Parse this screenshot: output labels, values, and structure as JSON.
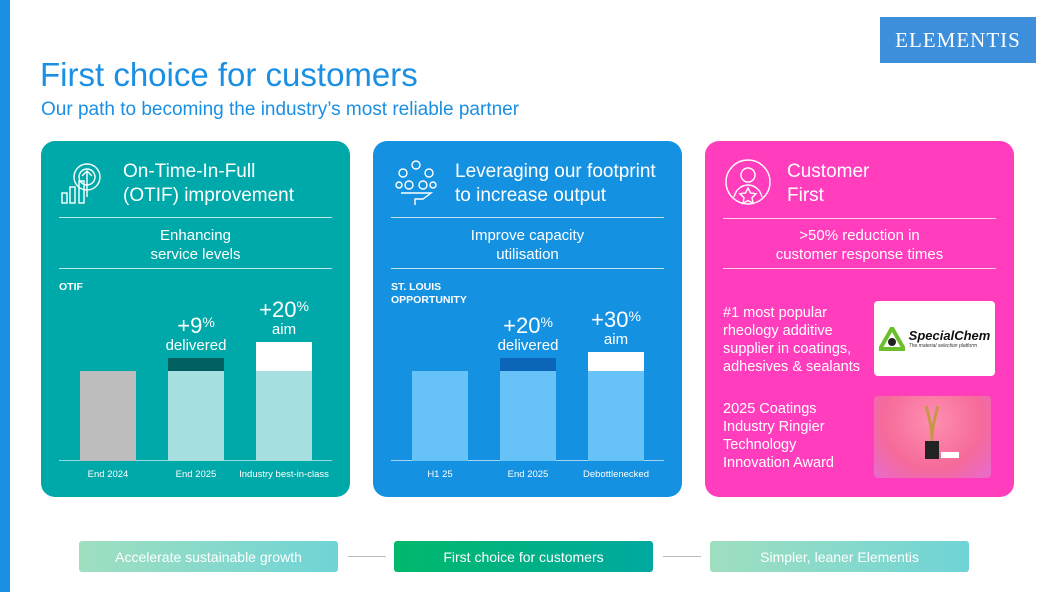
{
  "logo": "ELEMENTIS",
  "title": "First choice for customers",
  "subtitle": "Our path to becoming the industry’s most reliable partner",
  "cards": [
    {
      "title_l1": "On-Time-In-Full",
      "title_l2": "(OTIF) improvement",
      "tag_l1": "Enhancing",
      "tag_l2": "service levels",
      "color": "#00a9a9",
      "chart_label": "OTIF",
      "bars": [
        {
          "label": "End 2024",
          "base": 100,
          "increment": 0
        },
        {
          "label": "End 2025",
          "base": 100,
          "increment": 9,
          "ann_value": "+9",
          "ann_text": "delivered"
        },
        {
          "label": "Industry best-in-class",
          "base": 100,
          "increment": 20,
          "ann_value": "+20",
          "ann_text": "aim"
        }
      ]
    },
    {
      "title_l1": "Leveraging our footprint",
      "title_l2": "to increase output",
      "tag_l1": "Improve capacity",
      "tag_l2": "utilisation",
      "color": "#1591e2",
      "chart_label_l1": "ST. LOUIS",
      "chart_label_l2": "OPPORTUNITY",
      "bars": [
        {
          "label": "H1 25",
          "base": 100,
          "increment": 0
        },
        {
          "label": "End 2025",
          "base": 100,
          "increment": 20,
          "ann_value": "+20",
          "ann_text": "delivered"
        },
        {
          "label": "Debottlenecked",
          "base": 100,
          "increment": 30,
          "ann_value": "+30",
          "ann_text": "aim"
        }
      ]
    },
    {
      "title_l1": "Customer",
      "title_l2": "First",
      "tag_l1": ">50% reduction in",
      "tag_l2": "customer response times",
      "color": "#ff3dbd",
      "point1": [
        "#1 most popular",
        "rheology additive",
        "supplier in coatings,",
        "adhesives & sealants"
      ],
      "point2": [
        "2025 Coatings",
        "Industry Ringier",
        "Technology",
        "Innovation Award"
      ],
      "partner_logo": "SpecialChem",
      "partner_tagline": "The material selection platform"
    }
  ],
  "percent": "%",
  "pills": [
    "Accelerate sustainable growth",
    "First choice for customers",
    "Simpler, leaner Elementis"
  ]
}
